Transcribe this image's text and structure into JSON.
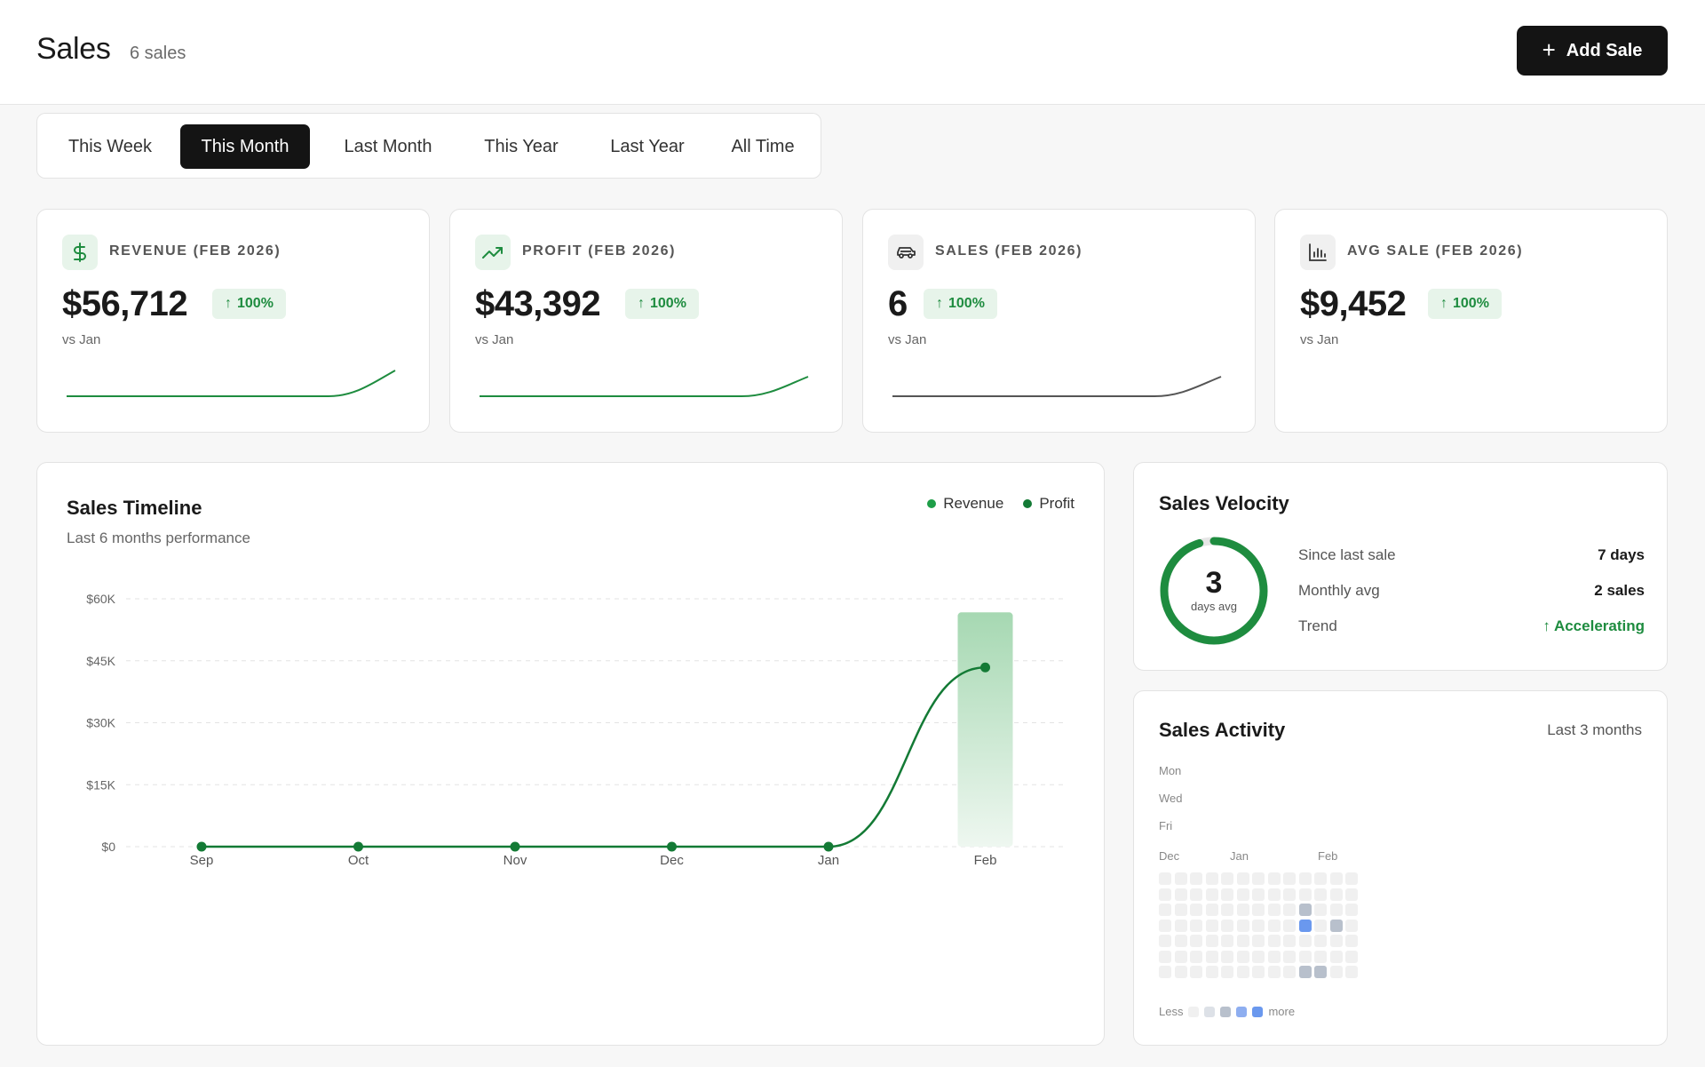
{
  "header": {
    "title": "Sales",
    "count": "6 sales",
    "add_button": "Add Sale"
  },
  "tabs": [
    {
      "label": "This Week",
      "active": false
    },
    {
      "label": "This Month",
      "active": true
    },
    {
      "label": "Last Month",
      "active": false
    },
    {
      "label": "This Year",
      "active": false
    },
    {
      "label": "Last Year",
      "active": false
    },
    {
      "label": "All Time",
      "active": false
    }
  ],
  "stats": [
    {
      "label": "REVENUE (FEB 2026)",
      "value": "$56,712",
      "change": "100%",
      "compare": "vs Jan",
      "icon": "dollar-icon",
      "spark_color": "#1e8c3f"
    },
    {
      "label": "PROFIT (FEB 2026)",
      "value": "$43,392",
      "change": "100%",
      "compare": "vs Jan",
      "icon": "trending-up-icon",
      "spark_color": "#1e8c3f"
    },
    {
      "label": "SALES (FEB 2026)",
      "value": "6",
      "change": "100%",
      "compare": "vs Jan",
      "icon": "car-icon",
      "spark_color": "#555555"
    },
    {
      "label": "AVG SALE (FEB 2026)",
      "value": "$9,452",
      "change": "100%",
      "compare": "vs Jan",
      "icon": "bar-chart-icon",
      "spark_color": ""
    }
  ],
  "timeline": {
    "title": "Sales Timeline",
    "subtitle": "Last 6 months performance",
    "legend": [
      {
        "name": "Revenue",
        "color": "#1e9e48"
      },
      {
        "name": "Profit",
        "color": "#137a35"
      }
    ]
  },
  "chart_data": {
    "type": "line",
    "categories": [
      "Sep",
      "Oct",
      "Nov",
      "Dec",
      "Jan",
      "Feb"
    ],
    "series": [
      {
        "name": "Revenue",
        "type": "bar",
        "values": [
          0,
          0,
          0,
          0,
          0,
          56712
        ]
      },
      {
        "name": "Profit",
        "type": "line",
        "values": [
          0,
          0,
          0,
          0,
          0,
          43392
        ]
      }
    ],
    "y_ticks": [
      "$0",
      "$15K",
      "$30K",
      "$45K",
      "$60K"
    ],
    "ylim": [
      0,
      60000
    ],
    "grid": true,
    "legend_position": "top-right"
  },
  "velocity": {
    "title": "Sales Velocity",
    "ring_value": "3",
    "ring_label": "days avg",
    "rows": [
      {
        "key": "Since last sale",
        "value": "7 days"
      },
      {
        "key": "Monthly avg",
        "value": "2 sales"
      },
      {
        "key": "Trend",
        "value": "Accelerating",
        "positive": true
      }
    ]
  },
  "activity": {
    "title": "Sales Activity",
    "range": "Last 3 months",
    "day_labels": [
      "Mon",
      "Wed",
      "Fri"
    ],
    "month_labels": [
      "Dec",
      "Jan",
      "Feb"
    ],
    "less_label": "Less",
    "more_label": "more",
    "weeks": 13,
    "cells": [
      {
        "week": 9,
        "day": 2,
        "level": 2
      },
      {
        "week": 9,
        "day": 3,
        "level": 4
      },
      {
        "week": 11,
        "day": 3,
        "level": 2
      },
      {
        "week": 9,
        "day": 6,
        "level": 2
      },
      {
        "week": 10,
        "day": 6,
        "level": 2
      }
    ],
    "scale_colors": [
      "#f0f0f0",
      "#dde1e7",
      "#b8c0cc",
      "#8eaef0",
      "#6a98ee"
    ]
  }
}
